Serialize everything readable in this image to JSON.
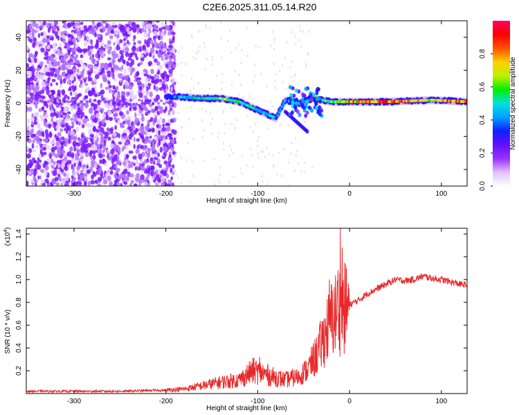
{
  "title": "C2E6.2025.311.05.14.R20",
  "chart_data": [
    {
      "type": "heatmap",
      "xlabel": "Height of straight line (km)",
      "ylabel": "Frequency (Hz)",
      "xlim": [
        -352,
        128
      ],
      "ylim": [
        -50,
        50
      ],
      "xticks": [
        -300,
        -200,
        -100,
        0,
        100
      ],
      "xtick_labels": [
        "-300",
        "-200",
        "-100",
        "0",
        "100"
      ],
      "yticks": [
        -40,
        -20,
        0,
        20,
        40
      ],
      "ytick_labels": [
        "-40",
        "-20",
        "0",
        "20",
        "40"
      ],
      "colorbar": {
        "label": "Normalized spectral amplitude",
        "range": [
          0,
          1
        ],
        "ticks": [
          0.0,
          0.2,
          0.4,
          0.6,
          0.8
        ],
        "tick_labels": [
          "0.0",
          "0.2",
          "0.4",
          "0.6",
          "0.8"
        ],
        "colors": [
          "#ffffff",
          "#e0c0ff",
          "#9b30ff",
          "#6010ff",
          "#1020ff",
          "#00a0ff",
          "#00e0e0",
          "#00f000",
          "#c0f000",
          "#ffd000",
          "#ff5000",
          "#ff0000",
          "#ff0060"
        ]
      },
      "features": {
        "noise_region_x": [
          -352,
          -190
        ],
        "noise_amplitude_level": 0.12,
        "signal_track": [
          {
            "x": -200,
            "y": 4,
            "amp": 0.3
          },
          {
            "x": -185,
            "y": 4,
            "amp": 0.45
          },
          {
            "x": -160,
            "y": 3,
            "amp": 0.55
          },
          {
            "x": -140,
            "y": 3,
            "amp": 0.6
          },
          {
            "x": -120,
            "y": 1,
            "amp": 0.55
          },
          {
            "x": -100,
            "y": -4,
            "amp": 0.5
          },
          {
            "x": -80,
            "y": -9,
            "amp": 0.45
          },
          {
            "x": -70,
            "y": 2,
            "amp": 0.45
          },
          {
            "x": -55,
            "y": 0,
            "amp": 0.5
          },
          {
            "x": -40,
            "y": 3,
            "amp": 0.45
          },
          {
            "x": -20,
            "y": 1,
            "amp": 0.65
          },
          {
            "x": 0,
            "y": 1,
            "amp": 0.8
          },
          {
            "x": 40,
            "y": 1,
            "amp": 0.9
          },
          {
            "x": 90,
            "y": 2,
            "amp": 0.75
          },
          {
            "x": 128,
            "y": 1,
            "amp": 0.9
          }
        ]
      }
    },
    {
      "type": "line",
      "xlabel": "Height of straight line (km)",
      "ylabel": "SNR (10 * v/v)",
      "y_multiplier_label": "(x10",
      "y_multiplier_exp": "4",
      "xlim": [
        -352,
        128
      ],
      "ylim": [
        0,
        1.45
      ],
      "xticks": [
        -300,
        -200,
        -100,
        0,
        100
      ],
      "xtick_labels": [
        "-300",
        "-200",
        "-100",
        "0",
        "100"
      ],
      "yticks": [
        0.2,
        0.4,
        0.6,
        0.8,
        1.0,
        1.2,
        1.4
      ],
      "ytick_labels": [
        "0.2",
        "0.4",
        "0.6",
        "0.8",
        "1.0",
        "1.2",
        "1.4"
      ],
      "series": [
        {
          "name": "SNR",
          "color": "#e8282a",
          "x": [
            -352,
            -300,
            -250,
            -200,
            -180,
            -160,
            -140,
            -120,
            -105,
            -95,
            -85,
            -70,
            -55,
            -45,
            -35,
            -30,
            -25,
            -20,
            -15,
            -12,
            -10,
            -5,
            0,
            10,
            20,
            30,
            40,
            50,
            60,
            70,
            80,
            90,
            100,
            110,
            120,
            128
          ],
          "y": [
            0.02,
            0.02,
            0.02,
            0.03,
            0.04,
            0.07,
            0.1,
            0.12,
            0.2,
            0.18,
            0.15,
            0.12,
            0.15,
            0.22,
            0.35,
            0.45,
            0.55,
            0.65,
            0.7,
            0.8,
            0.7,
            0.75,
            0.78,
            0.82,
            0.88,
            0.92,
            0.96,
            1.0,
            0.99,
            1.0,
            1.03,
            1.01,
            1.0,
            0.98,
            0.96,
            0.95
          ],
          "spikes": [
            {
              "x": -10,
              "y": 1.45
            },
            {
              "x": -8,
              "y": 1.28
            },
            {
              "x": -22,
              "y": 1.0
            },
            {
              "x": -98,
              "y": 0.32
            }
          ]
        }
      ]
    }
  ]
}
